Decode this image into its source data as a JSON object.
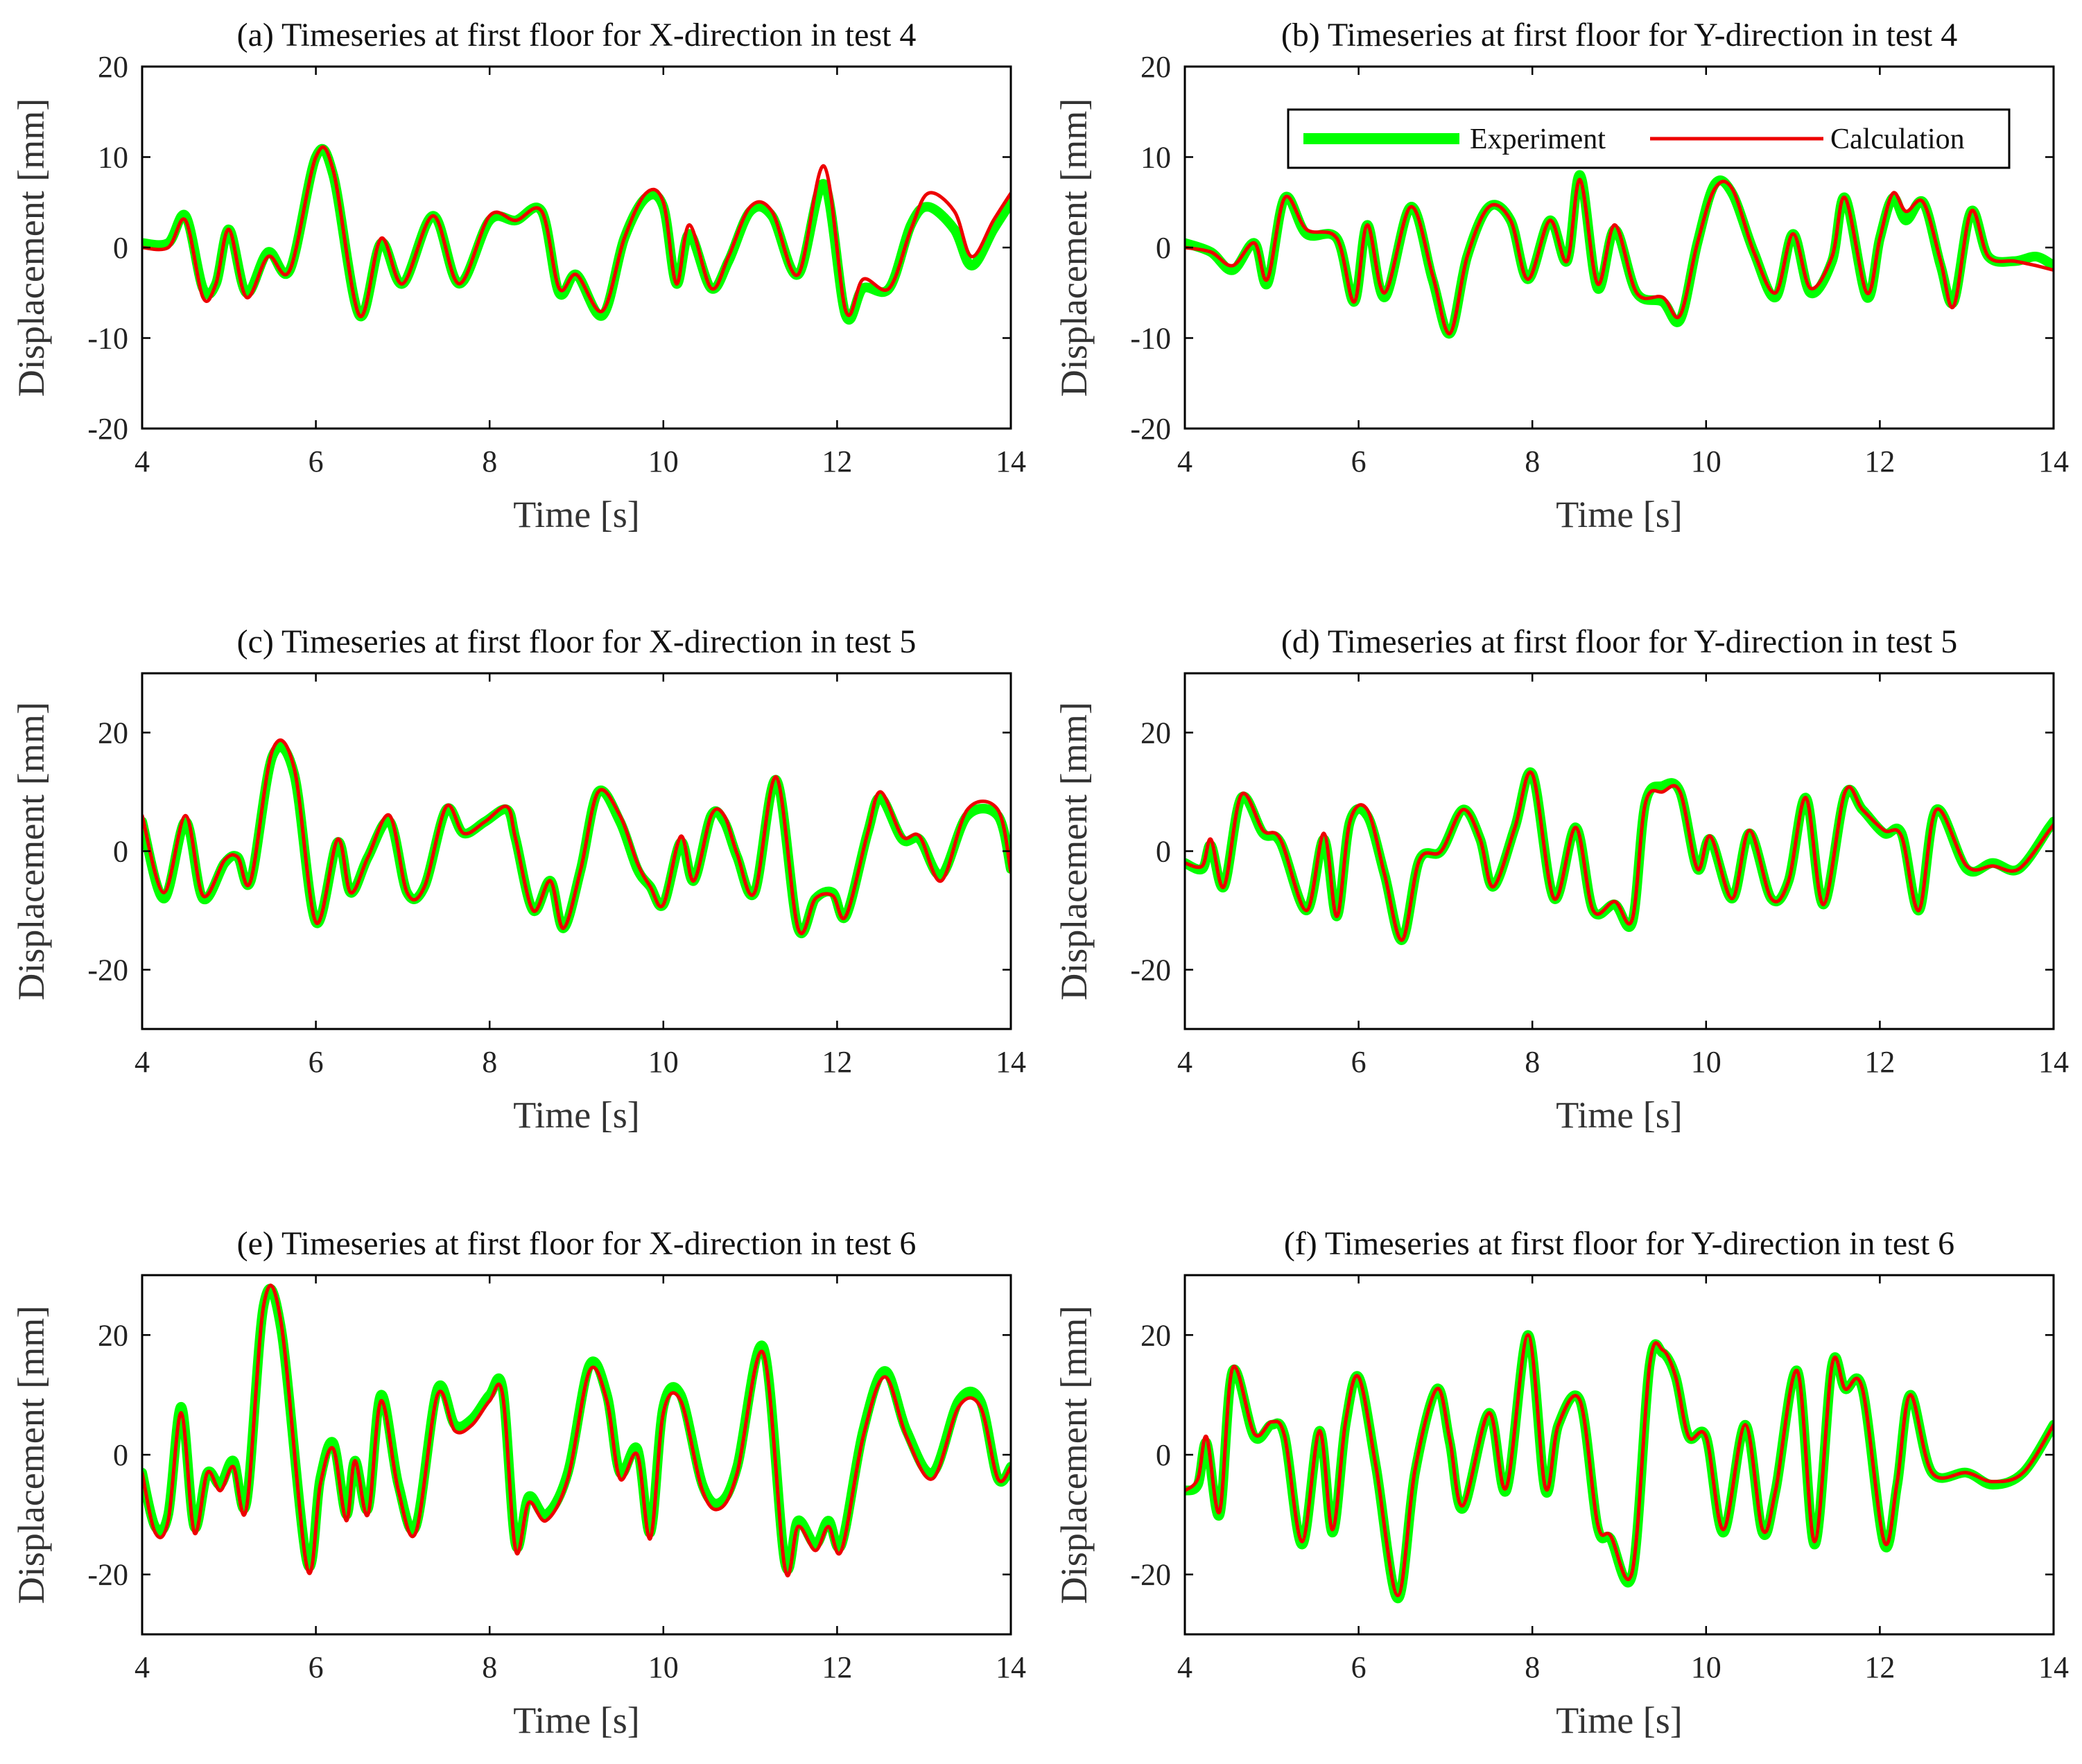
{
  "colors": {
    "experiment": "#00ff00",
    "calculation": "#ee0000",
    "axis": "#000000"
  },
  "legend": {
    "experiment_label": "Experiment",
    "calculation_label": "Calculation",
    "placement": "top-right of panel (b)"
  },
  "chart_data": [
    {
      "type": "line",
      "title": "(a) Timeseries at first floor for X-direction in test 4",
      "xlabel": "Time [s]",
      "ylabel": "Displacement [mm]",
      "xlim": [
        4,
        14
      ],
      "ylim": [
        -20,
        20
      ],
      "xticks": [
        4,
        6,
        8,
        10,
        12,
        14
      ],
      "yticks": [
        -20,
        -10,
        0,
        10,
        20
      ],
      "x": [
        4.0,
        4.3,
        4.5,
        4.7,
        4.85,
        5.0,
        5.2,
        5.45,
        5.7,
        6.0,
        6.2,
        6.5,
        6.75,
        7.0,
        7.35,
        7.65,
        8.0,
        8.3,
        8.6,
        8.8,
        9.0,
        9.3,
        9.55,
        9.8,
        10.0,
        10.15,
        10.3,
        10.55,
        10.75,
        11.0,
        11.25,
        11.55,
        11.85,
        12.1,
        12.3,
        12.6,
        12.85,
        13.05,
        13.35,
        13.55,
        13.8,
        14.0
      ],
      "series": [
        {
          "name": "Experiment",
          "values": [
            0.5,
            0.5,
            3.5,
            -4.5,
            -4.0,
            2.0,
            -5.0,
            -0.5,
            -2.5,
            10.0,
            8.0,
            -7.5,
            0.5,
            -4.0,
            3.5,
            -4.0,
            3.0,
            3.0,
            4.0,
            -5.0,
            -3.0,
            -7.5,
            1.0,
            5.5,
            4.5,
            -4.0,
            1.5,
            -4.5,
            -1.5,
            4.0,
            3.5,
            -3.0,
            7.0,
            -7.5,
            -4.5,
            -4.5,
            2.5,
            4.5,
            2.0,
            -2.0,
            2.0,
            5.0
          ]
        },
        {
          "name": "Calculation",
          "values": [
            0.0,
            0.0,
            3.0,
            -5.5,
            -4.0,
            2.0,
            -5.5,
            -1.0,
            -2.5,
            10.0,
            8.5,
            -7.5,
            1.0,
            -4.0,
            3.5,
            -4.0,
            3.5,
            3.0,
            4.0,
            -4.5,
            -3.0,
            -7.0,
            1.0,
            6.0,
            5.0,
            -4.0,
            2.5,
            -4.5,
            -1.0,
            4.5,
            4.0,
            -3.0,
            9.0,
            -7.0,
            -3.5,
            -4.5,
            2.0,
            6.0,
            4.0,
            -1.0,
            3.0,
            6.0
          ]
        }
      ]
    },
    {
      "type": "line",
      "title": "(b) Timeseries at first floor for Y-direction in test 4",
      "xlabel": "Time [s]",
      "ylabel": "Displacement [mm]",
      "xlim": [
        4,
        14
      ],
      "ylim": [
        -20,
        20
      ],
      "xticks": [
        4,
        6,
        8,
        10,
        12,
        14
      ],
      "yticks": [
        -20,
        -10,
        0,
        10,
        20
      ],
      "x": [
        4.0,
        4.3,
        4.55,
        4.8,
        4.95,
        5.15,
        5.4,
        5.75,
        5.95,
        6.1,
        6.3,
        6.6,
        6.85,
        7.05,
        7.25,
        7.5,
        7.75,
        7.95,
        8.2,
        8.4,
        8.55,
        8.75,
        8.95,
        9.2,
        9.5,
        9.7,
        9.9,
        10.1,
        10.3,
        10.55,
        10.8,
        11.0,
        11.2,
        11.45,
        11.6,
        11.85,
        12.0,
        12.15,
        12.3,
        12.5,
        12.7,
        12.85,
        13.05,
        13.25,
        13.55,
        13.8,
        14.0
      ],
      "series": [
        {
          "name": "Experiment",
          "values": [
            0.5,
            -0.5,
            -2.5,
            0.5,
            -4.0,
            5.5,
            1.5,
            1.0,
            -6.0,
            2.5,
            -5.5,
            4.5,
            -3.5,
            -9.5,
            -1.0,
            4.5,
            3.0,
            -3.5,
            3.0,
            -1.5,
            8.0,
            -4.5,
            2.0,
            -5.0,
            -6.0,
            -8.0,
            0.5,
            7.0,
            6.0,
            -0.5,
            -5.5,
            1.5,
            -5.0,
            -1.5,
            5.5,
            -5.5,
            1.0,
            5.5,
            3.0,
            5.0,
            -2.0,
            -6.0,
            4.0,
            -1.0,
            -1.5,
            -1.0,
            -2.0
          ]
        },
        {
          "name": "Calculation",
          "values": [
            0.0,
            -0.5,
            -2.0,
            0.5,
            -3.5,
            5.5,
            2.0,
            1.0,
            -6.0,
            2.5,
            -5.0,
            4.5,
            -3.0,
            -9.5,
            -1.0,
            4.5,
            3.0,
            -3.5,
            3.0,
            -1.5,
            7.5,
            -4.0,
            2.5,
            -5.0,
            -5.5,
            -7.5,
            0.5,
            6.5,
            6.5,
            -0.5,
            -5.0,
            1.5,
            -4.5,
            -1.0,
            5.5,
            -5.0,
            1.0,
            6.0,
            4.0,
            5.0,
            -1.5,
            -6.5,
            4.0,
            -1.0,
            -1.5,
            -2.0,
            -2.5
          ]
        }
      ]
    },
    {
      "type": "line",
      "title": "(c) Timeseries at first floor for X-direction in test 5",
      "xlabel": "Time [s]",
      "ylabel": "Displacement [mm]",
      "xlim": [
        4,
        14
      ],
      "ylim": [
        -30,
        30
      ],
      "xticks": [
        4,
        6,
        8,
        10,
        12,
        14
      ],
      "yticks": [
        -20,
        0,
        20
      ],
      "x": [
        4.0,
        4.25,
        4.5,
        4.7,
        4.95,
        5.1,
        5.25,
        5.5,
        5.75,
        6.0,
        6.25,
        6.4,
        6.6,
        6.85,
        7.05,
        7.25,
        7.5,
        7.7,
        7.95,
        8.2,
        8.3,
        8.5,
        8.7,
        8.85,
        9.05,
        9.25,
        9.5,
        9.7,
        9.85,
        10.0,
        10.2,
        10.35,
        10.55,
        10.7,
        10.85,
        11.05,
        11.3,
        11.55,
        11.75,
        11.95,
        12.1,
        12.35,
        12.5,
        12.75,
        12.95,
        13.2,
        13.5,
        13.85,
        14.0
      ],
      "series": [
        {
          "name": "Experiment",
          "values": [
            5.0,
            -8.0,
            5.0,
            -8.0,
            -2.0,
            -1.0,
            -5.0,
            16.0,
            13.0,
            -12.0,
            1.5,
            -7.0,
            -1.0,
            5.0,
            -7.0,
            -6.0,
            7.0,
            3.0,
            5.0,
            7.0,
            2.0,
            -10.0,
            -5.0,
            -13.0,
            -3.0,
            10.0,
            5.0,
            -3.0,
            -6.0,
            -9.0,
            1.5,
            -5.0,
            6.0,
            5.0,
            -1.0,
            -7.0,
            12.0,
            -13.0,
            -8.0,
            -7.0,
            -11.0,
            3.0,
            9.0,
            2.0,
            2.0,
            -4.0,
            6.0,
            6.0,
            -3.0
          ]
        },
        {
          "name": "Calculation",
          "values": [
            6.0,
            -7.0,
            6.0,
            -7.5,
            -1.5,
            -1.0,
            -5.0,
            17.0,
            14.0,
            -12.0,
            2.0,
            -7.0,
            -1.0,
            6.0,
            -7.0,
            -6.0,
            7.5,
            3.0,
            5.0,
            7.5,
            2.0,
            -10.0,
            -5.0,
            -13.0,
            -3.0,
            10.0,
            6.0,
            -2.0,
            -6.0,
            -9.0,
            2.5,
            -5.0,
            6.0,
            6.0,
            -0.5,
            -7.0,
            12.5,
            -13.0,
            -8.0,
            -7.5,
            -11.0,
            3.0,
            10.0,
            2.5,
            2.5,
            -5.0,
            7.0,
            7.0,
            -3.5
          ]
        }
      ]
    },
    {
      "type": "line",
      "title": "(d) Timeseries at first floor for Y-direction in test 5",
      "xlabel": "Time [s]",
      "ylabel": "Displacement [mm]",
      "xlim": [
        4,
        14
      ],
      "ylim": [
        -30,
        30
      ],
      "xticks": [
        4,
        6,
        8,
        10,
        12,
        14
      ],
      "yticks": [
        -20,
        0,
        20
      ],
      "x": [
        4.0,
        4.2,
        4.3,
        4.45,
        4.65,
        4.9,
        5.1,
        5.4,
        5.6,
        5.75,
        5.9,
        6.1,
        6.3,
        6.5,
        6.7,
        6.95,
        7.2,
        7.4,
        7.55,
        7.8,
        8.0,
        8.25,
        8.5,
        8.7,
        8.95,
        9.15,
        9.3,
        9.5,
        9.7,
        9.9,
        10.05,
        10.3,
        10.5,
        10.75,
        10.95,
        11.15,
        11.35,
        11.6,
        11.8,
        12.05,
        12.25,
        12.45,
        12.65,
        13.0,
        13.3,
        13.6,
        13.95,
        14.0
      ],
      "series": [
        {
          "name": "Experiment",
          "values": [
            -2.0,
            -3.0,
            1.0,
            -6.0,
            9.0,
            3.0,
            1.5,
            -10.0,
            2.0,
            -11.0,
            5.0,
            6.0,
            -4.0,
            -15.0,
            -1.5,
            0.0,
            7.0,
            2.0,
            -6.0,
            4.0,
            13.0,
            -8.0,
            4.0,
            -10.0,
            -9.0,
            -12.0,
            8.0,
            11.0,
            10.0,
            -3.0,
            2.0,
            -8.0,
            3.0,
            -8.0,
            -5.0,
            9.0,
            -9.0,
            9.5,
            7.0,
            3.0,
            3.0,
            -10.0,
            7.0,
            -3.0,
            -2.0,
            -3.0,
            4.0,
            5.0
          ]
        },
        {
          "name": "Calculation",
          "values": [
            -2.0,
            -2.5,
            2.0,
            -6.0,
            9.5,
            3.5,
            2.0,
            -10.0,
            3.0,
            -11.0,
            5.0,
            7.0,
            -4.0,
            -15.0,
            -1.5,
            0.0,
            7.0,
            2.0,
            -6.0,
            4.0,
            13.0,
            -8.0,
            4.0,
            -10.0,
            -8.5,
            -11.5,
            8.0,
            10.0,
            10.0,
            -3.0,
            2.5,
            -8.0,
            3.5,
            -8.0,
            -5.0,
            9.0,
            -9.0,
            10.0,
            7.0,
            3.5,
            2.5,
            -10.0,
            7.0,
            -2.5,
            -2.5,
            -3.0,
            3.5,
            4.5
          ]
        }
      ]
    },
    {
      "type": "line",
      "title": "(e) Timeseries at first floor for X-direction in test 6",
      "xlabel": "Time [s]",
      "ylabel": "Displacement [mm]",
      "xlim": [
        4,
        14
      ],
      "ylim": [
        -30,
        30
      ],
      "xticks": [
        4,
        6,
        8,
        10,
        12,
        14
      ],
      "yticks": [
        -20,
        0,
        20
      ],
      "x": [
        4.0,
        4.15,
        4.3,
        4.45,
        4.6,
        4.75,
        4.9,
        5.05,
        5.2,
        5.4,
        5.6,
        5.9,
        6.05,
        6.2,
        6.35,
        6.45,
        6.6,
        6.75,
        6.95,
        7.15,
        7.4,
        7.6,
        7.8,
        8.0,
        8.15,
        8.3,
        8.45,
        8.65,
        8.9,
        9.15,
        9.35,
        9.5,
        9.7,
        9.85,
        10.0,
        10.2,
        10.45,
        10.65,
        10.85,
        11.15,
        11.4,
        11.55,
        11.75,
        11.9,
        12.05,
        12.3,
        12.55,
        12.8,
        13.1,
        13.4,
        13.65,
        13.85,
        14.0
      ],
      "series": [
        {
          "name": "Experiment",
          "values": [
            -3.0,
            -12.0,
            -10.0,
            8.0,
            -12.0,
            -3.0,
            -5.0,
            -1.0,
            -8.0,
            25.0,
            21.0,
            -18.0,
            -4.0,
            2.0,
            -10.0,
            -1.0,
            -9.0,
            10.0,
            -5.0,
            -12.0,
            11.0,
            5.0,
            6.0,
            10.0,
            11.0,
            -15.0,
            -7.0,
            -10.0,
            -3.0,
            15.0,
            10.0,
            -3.0,
            1.0,
            -13.0,
            8.0,
            10.0,
            -5.0,
            -8.0,
            -2.0,
            18.0,
            -18.0,
            -11.0,
            -15.0,
            -11.0,
            -15.0,
            4.0,
            14.0,
            4.0,
            -3.0,
            9.0,
            9.0,
            -4.0,
            -2.0
          ]
        },
        {
          "name": "Calculation",
          "values": [
            -3.0,
            -13.0,
            -11.0,
            7.0,
            -13.0,
            -3.0,
            -6.0,
            -2.0,
            -9.0,
            25.0,
            22.0,
            -19.0,
            -5.0,
            1.0,
            -11.0,
            -1.0,
            -10.0,
            9.0,
            -6.0,
            -13.0,
            10.0,
            4.0,
            5.0,
            9.0,
            10.0,
            -16.0,
            -8.0,
            -11.0,
            -4.0,
            14.0,
            9.0,
            -4.0,
            0.0,
            -14.0,
            7.0,
            9.0,
            -6.0,
            -9.0,
            -3.0,
            17.0,
            -19.0,
            -12.0,
            -16.0,
            -12.0,
            -16.0,
            3.0,
            13.0,
            3.0,
            -4.0,
            8.0,
            8.0,
            -4.0,
            -2.0
          ]
        }
      ]
    },
    {
      "type": "line",
      "title": "(f) Timeseries at first floor for Y-direction in test 6",
      "xlabel": "Time [s]",
      "ylabel": "Displacement [mm]",
      "xlim": [
        4,
        14
      ],
      "ylim": [
        -30,
        30
      ],
      "xticks": [
        4,
        6,
        8,
        10,
        12,
        14
      ],
      "yticks": [
        -20,
        0,
        20
      ],
      "x": [
        4.0,
        4.15,
        4.25,
        4.4,
        4.55,
        4.8,
        5.0,
        5.15,
        5.35,
        5.55,
        5.7,
        5.85,
        6.0,
        6.2,
        6.45,
        6.65,
        6.9,
        7.05,
        7.2,
        7.5,
        7.7,
        7.95,
        8.15,
        8.3,
        8.55,
        8.75,
        8.9,
        9.15,
        9.35,
        9.5,
        9.65,
        9.8,
        10.0,
        10.2,
        10.45,
        10.65,
        10.8,
        11.05,
        11.25,
        11.45,
        11.6,
        11.8,
        12.05,
        12.2,
        12.35,
        12.6,
        13.0,
        13.3,
        13.65,
        14.0
      ],
      "series": [
        {
          "name": "Experiment",
          "values": [
            -6.0,
            -5.0,
            2.0,
            -10.0,
            14.0,
            3.0,
            5.0,
            3.0,
            -15.0,
            4.0,
            -13.0,
            5.0,
            13.0,
            -2.0,
            -24.0,
            -3.0,
            11.0,
            2.0,
            -9.0,
            7.0,
            -6.0,
            20.0,
            -6.0,
            5.0,
            9.0,
            -12.0,
            -14.0,
            -20.0,
            15.0,
            17.0,
            13.0,
            3.0,
            3.0,
            -13.0,
            5.0,
            -13.0,
            -6.0,
            14.0,
            -15.0,
            15.0,
            11.0,
            11.0,
            -15.0,
            -5.0,
            10.0,
            -3.0,
            -3.0,
            -5.0,
            -3.0,
            5.0
          ]
        },
        {
          "name": "Calculation",
          "values": [
            -6.0,
            -4.0,
            3.0,
            -9.5,
            14.5,
            3.5,
            5.5,
            3.0,
            -14.5,
            4.0,
            -12.5,
            5.5,
            13.0,
            -2.0,
            -23.5,
            -2.5,
            11.0,
            2.5,
            -8.5,
            7.0,
            -5.5,
            20.0,
            -5.5,
            5.0,
            9.0,
            -11.5,
            -13.5,
            -19.5,
            15.0,
            17.5,
            13.0,
            3.0,
            3.0,
            -12.5,
            5.0,
            -12.5,
            -6.0,
            14.0,
            -14.5,
            15.0,
            11.0,
            11.0,
            -14.5,
            -4.5,
            10.0,
            -3.0,
            -3.0,
            -4.5,
            -3.0,
            5.0
          ]
        }
      ]
    }
  ]
}
